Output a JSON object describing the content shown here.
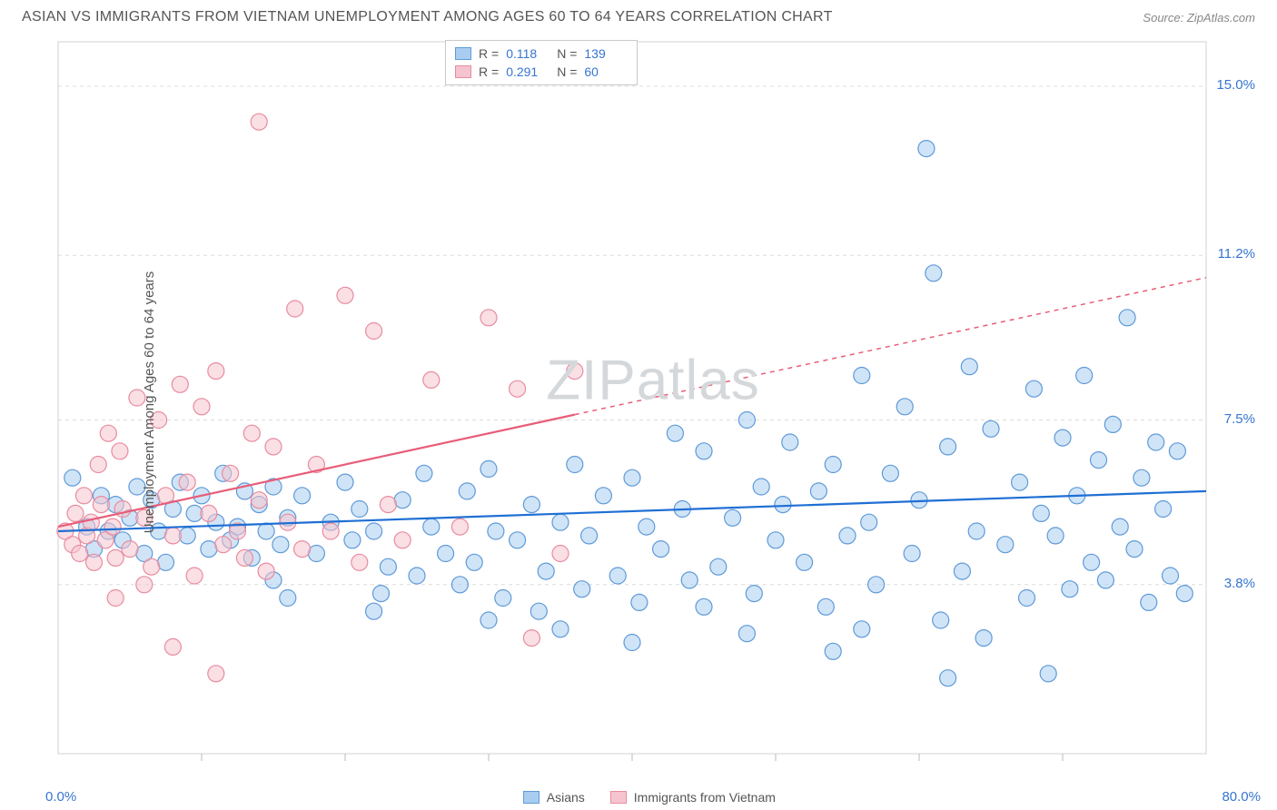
{
  "header": {
    "title": "ASIAN VS IMMIGRANTS FROM VIETNAM UNEMPLOYMENT AMONG AGES 60 TO 64 YEARS CORRELATION CHART",
    "source_label": "Source:",
    "source_name": "ZipAtlas.com"
  },
  "watermark": "ZIPatlas",
  "chart": {
    "type": "scatter",
    "ylabel": "Unemployment Among Ages 60 to 64 years",
    "xlim": [
      0,
      80
    ],
    "ylim": [
      0,
      16
    ],
    "xticks": [
      10,
      20,
      30,
      40,
      50,
      60,
      70
    ],
    "ygrid": [
      3.8,
      7.5,
      11.2,
      15.0
    ],
    "ytick_labels": [
      "3.8%",
      "7.5%",
      "11.2%",
      "15.0%"
    ],
    "x_start_label": "0.0%",
    "x_end_label": "80.0%",
    "background_color": "#ffffff",
    "grid_color": "#dcdcdc",
    "border_color": "#d0d0d0",
    "marker_radius": 9,
    "marker_opacity": 0.55,
    "line_width": 2.2,
    "label_fontsize": 15,
    "value_color": "#3675d1",
    "series": [
      {
        "name": "Asians",
        "fill": "#a9cdf0",
        "stroke": "#5f9ad8",
        "line_color": "#1f6fd4",
        "line_dash": "none",
        "R": "0.118",
        "N": "139",
        "trend": {
          "x1": 0,
          "y1": 5.0,
          "x2": 80,
          "y2": 5.9
        },
        "points": [
          [
            1,
            6.2
          ],
          [
            2,
            5.1
          ],
          [
            2.5,
            4.6
          ],
          [
            3,
            5.8
          ],
          [
            3.5,
            5.0
          ],
          [
            4,
            5.6
          ],
          [
            4.5,
            4.8
          ],
          [
            5,
            5.3
          ],
          [
            5.5,
            6.0
          ],
          [
            6,
            4.5
          ],
          [
            6.5,
            5.7
          ],
          [
            7,
            5.0
          ],
          [
            7.5,
            4.3
          ],
          [
            8,
            5.5
          ],
          [
            8.5,
            6.1
          ],
          [
            9,
            4.9
          ],
          [
            9.5,
            5.4
          ],
          [
            10,
            5.8
          ],
          [
            10.5,
            4.6
          ],
          [
            11,
            5.2
          ],
          [
            11.5,
            6.3
          ],
          [
            12,
            4.8
          ],
          [
            12.5,
            5.1
          ],
          [
            13,
            5.9
          ],
          [
            13.5,
            4.4
          ],
          [
            14,
            5.6
          ],
          [
            14.5,
            5.0
          ],
          [
            15,
            6.0
          ],
          [
            15.5,
            4.7
          ],
          [
            16,
            5.3
          ],
          [
            17,
            5.8
          ],
          [
            18,
            4.5
          ],
          [
            19,
            5.2
          ],
          [
            20,
            6.1
          ],
          [
            20.5,
            4.8
          ],
          [
            21,
            5.5
          ],
          [
            22,
            5.0
          ],
          [
            22.5,
            3.6
          ],
          [
            23,
            4.2
          ],
          [
            24,
            5.7
          ],
          [
            25,
            4.0
          ],
          [
            25.5,
            6.3
          ],
          [
            26,
            5.1
          ],
          [
            27,
            4.5
          ],
          [
            28,
            3.8
          ],
          [
            28.5,
            5.9
          ],
          [
            29,
            4.3
          ],
          [
            30,
            6.4
          ],
          [
            30.5,
            5.0
          ],
          [
            31,
            3.5
          ],
          [
            32,
            4.8
          ],
          [
            33,
            5.6
          ],
          [
            33.5,
            3.2
          ],
          [
            34,
            4.1
          ],
          [
            35,
            5.2
          ],
          [
            36,
            6.5
          ],
          [
            36.5,
            3.7
          ],
          [
            37,
            4.9
          ],
          [
            38,
            5.8
          ],
          [
            39,
            4.0
          ],
          [
            40,
            6.2
          ],
          [
            40.5,
            3.4
          ],
          [
            41,
            5.1
          ],
          [
            42,
            4.6
          ],
          [
            43,
            7.2
          ],
          [
            43.5,
            5.5
          ],
          [
            44,
            3.9
          ],
          [
            45,
            6.8
          ],
          [
            46,
            4.2
          ],
          [
            47,
            5.3
          ],
          [
            48,
            7.5
          ],
          [
            48.5,
            3.6
          ],
          [
            49,
            6.0
          ],
          [
            50,
            4.8
          ],
          [
            50.5,
            5.6
          ],
          [
            51,
            7.0
          ],
          [
            52,
            4.3
          ],
          [
            53,
            5.9
          ],
          [
            53.5,
            3.3
          ],
          [
            54,
            6.5
          ],
          [
            55,
            4.9
          ],
          [
            56,
            8.5
          ],
          [
            56.5,
            5.2
          ],
          [
            57,
            3.8
          ],
          [
            58,
            6.3
          ],
          [
            59,
            7.8
          ],
          [
            59.5,
            4.5
          ],
          [
            60,
            5.7
          ],
          [
            60.5,
            13.6
          ],
          [
            61,
            10.8
          ],
          [
            61.5,
            3.0
          ],
          [
            62,
            6.9
          ],
          [
            63,
            4.1
          ],
          [
            63.5,
            8.7
          ],
          [
            64,
            5.0
          ],
          [
            64.5,
            2.6
          ],
          [
            65,
            7.3
          ],
          [
            66,
            4.7
          ],
          [
            67,
            6.1
          ],
          [
            67.5,
            3.5
          ],
          [
            68,
            8.2
          ],
          [
            68.5,
            5.4
          ],
          [
            69,
            1.8
          ],
          [
            69.5,
            4.9
          ],
          [
            70,
            7.1
          ],
          [
            70.5,
            3.7
          ],
          [
            71,
            5.8
          ],
          [
            71.5,
            8.5
          ],
          [
            72,
            4.3
          ],
          [
            72.5,
            6.6
          ],
          [
            73,
            3.9
          ],
          [
            73.5,
            7.4
          ],
          [
            74,
            5.1
          ],
          [
            74.5,
            9.8
          ],
          [
            75,
            4.6
          ],
          [
            75.5,
            6.2
          ],
          [
            76,
            3.4
          ],
          [
            76.5,
            7.0
          ],
          [
            77,
            5.5
          ],
          [
            77.5,
            4.0
          ],
          [
            78,
            6.8
          ],
          [
            78.5,
            3.6
          ],
          [
            54,
            2.3
          ],
          [
            56,
            2.8
          ],
          [
            62,
            1.7
          ],
          [
            30,
            3.0
          ],
          [
            35,
            2.8
          ],
          [
            40,
            2.5
          ],
          [
            48,
            2.7
          ],
          [
            15,
            3.9
          ],
          [
            16,
            3.5
          ],
          [
            22,
            3.2
          ],
          [
            45,
            3.3
          ]
        ]
      },
      {
        "name": "Immigrants from Vietnam",
        "fill": "#f6c4ce",
        "stroke": "#e88ca0",
        "line_color": "#e85d78",
        "line_dash": "5,5",
        "dash_after_x": 36,
        "R": "0.291",
        "N": "60",
        "trend": {
          "x1": 0,
          "y1": 5.1,
          "x2": 80,
          "y2": 10.7
        },
        "points": [
          [
            0.5,
            5.0
          ],
          [
            1,
            4.7
          ],
          [
            1.2,
            5.4
          ],
          [
            1.5,
            4.5
          ],
          [
            1.8,
            5.8
          ],
          [
            2,
            4.9
          ],
          [
            2.3,
            5.2
          ],
          [
            2.5,
            4.3
          ],
          [
            2.8,
            6.5
          ],
          [
            3,
            5.6
          ],
          [
            3.3,
            4.8
          ],
          [
            3.5,
            7.2
          ],
          [
            3.8,
            5.1
          ],
          [
            4,
            4.4
          ],
          [
            4.3,
            6.8
          ],
          [
            4.5,
            5.5
          ],
          [
            5,
            4.6
          ],
          [
            5.5,
            8.0
          ],
          [
            6,
            5.3
          ],
          [
            6.5,
            4.2
          ],
          [
            7,
            7.5
          ],
          [
            7.5,
            5.8
          ],
          [
            8,
            4.9
          ],
          [
            8.5,
            8.3
          ],
          [
            9,
            6.1
          ],
          [
            9.5,
            4.0
          ],
          [
            10,
            7.8
          ],
          [
            10.5,
            5.4
          ],
          [
            11,
            8.6
          ],
          [
            11.5,
            4.7
          ],
          [
            12,
            6.3
          ],
          [
            12.5,
            5.0
          ],
          [
            13,
            4.4
          ],
          [
            13.5,
            7.2
          ],
          [
            14,
            5.7
          ],
          [
            14.5,
            4.1
          ],
          [
            15,
            6.9
          ],
          [
            16,
            5.2
          ],
          [
            16.5,
            10.0
          ],
          [
            17,
            4.6
          ],
          [
            18,
            6.5
          ],
          [
            19,
            5.0
          ],
          [
            20,
            10.3
          ],
          [
            21,
            4.3
          ],
          [
            22,
            9.5
          ],
          [
            23,
            5.6
          ],
          [
            24,
            4.8
          ],
          [
            26,
            8.4
          ],
          [
            28,
            5.1
          ],
          [
            30,
            9.8
          ],
          [
            32,
            8.2
          ],
          [
            33,
            2.6
          ],
          [
            35,
            4.5
          ],
          [
            36,
            8.6
          ],
          [
            8,
            2.4
          ],
          [
            11,
            1.8
          ],
          [
            14,
            14.2
          ],
          [
            6,
            3.8
          ],
          [
            4,
            3.5
          ]
        ]
      }
    ],
    "bottom_legend": [
      {
        "label": "Asians",
        "fill": "#a9cdf0",
        "stroke": "#5f9ad8"
      },
      {
        "label": "Immigrants from Vietnam",
        "fill": "#f6c4ce",
        "stroke": "#e88ca0"
      }
    ]
  }
}
